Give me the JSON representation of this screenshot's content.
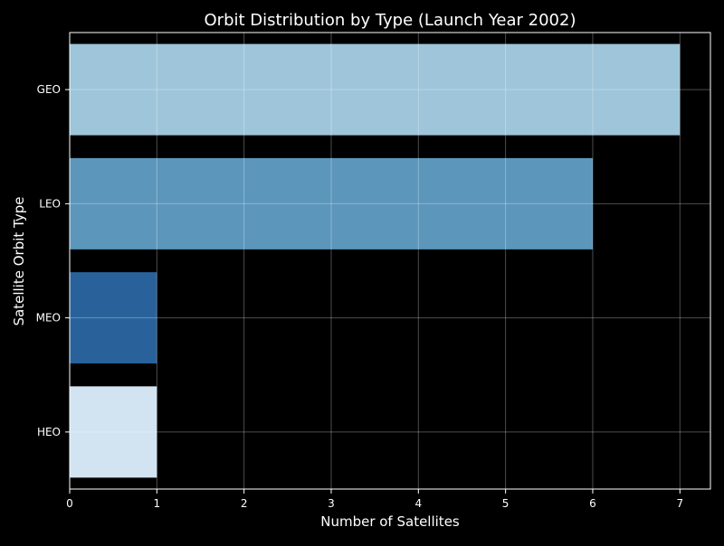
{
  "chart_data": {
    "type": "bar",
    "orientation": "horizontal",
    "title": "Orbit Distribution by Type (Launch Year 2002)",
    "xlabel": "Number of Satellites",
    "ylabel": "Satellite Orbit Type",
    "categories": [
      "GEO",
      "LEO",
      "MEO",
      "HEO"
    ],
    "values": [
      7,
      6,
      1,
      1
    ],
    "colors": [
      "#9ec5d9",
      "#5c96bb",
      "#29629b",
      "#d2e3f1"
    ],
    "xlim": [
      0,
      7.35
    ],
    "xticks": [
      0,
      1,
      2,
      3,
      4,
      5,
      6,
      7
    ],
    "grid": true,
    "background": "#000000",
    "axis_color": "#ffffff",
    "grid_color": "#5f5f5f"
  }
}
